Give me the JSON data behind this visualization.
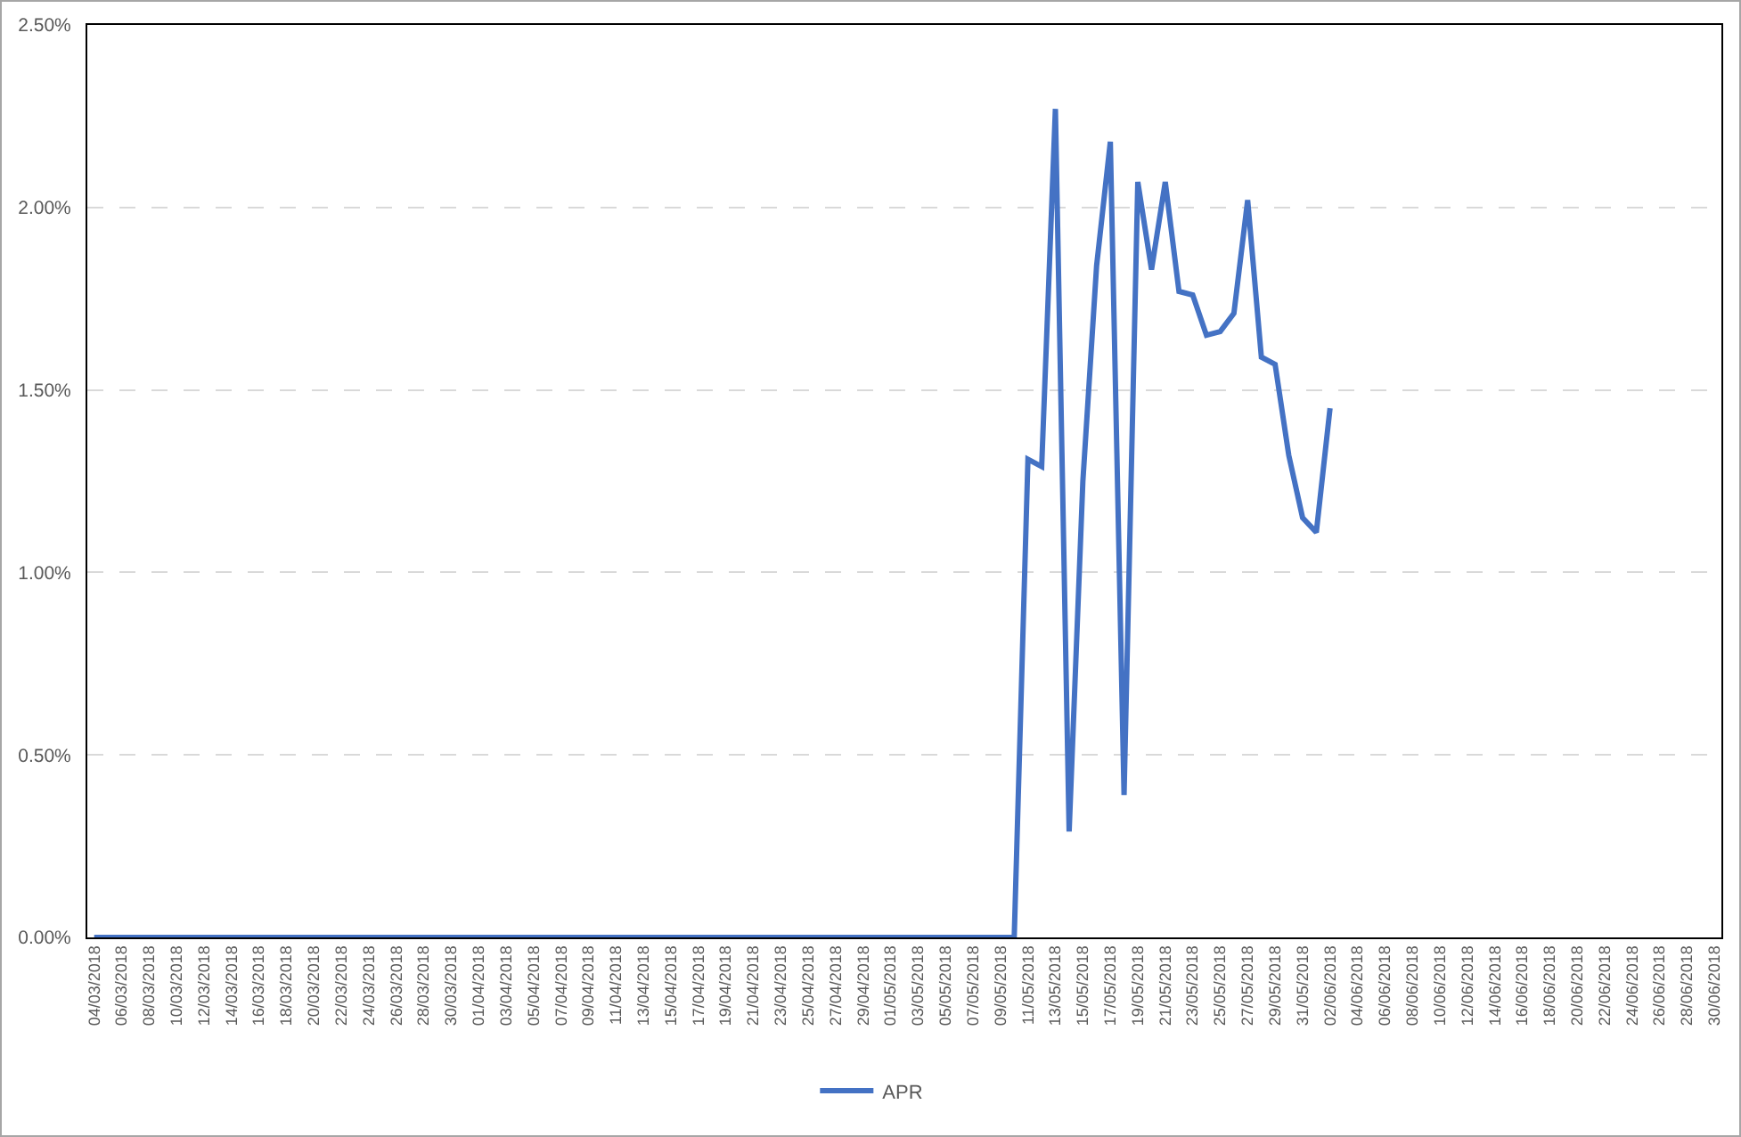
{
  "chart_data": {
    "type": "line",
    "x": [
      "2018-03-04",
      "2018-03-05",
      "2018-03-06",
      "2018-03-07",
      "2018-03-08",
      "2018-03-09",
      "2018-03-10",
      "2018-03-11",
      "2018-03-12",
      "2018-03-13",
      "2018-03-14",
      "2018-03-15",
      "2018-03-16",
      "2018-03-17",
      "2018-03-18",
      "2018-03-19",
      "2018-03-20",
      "2018-03-21",
      "2018-03-22",
      "2018-03-23",
      "2018-03-24",
      "2018-03-25",
      "2018-03-26",
      "2018-03-27",
      "2018-03-28",
      "2018-03-29",
      "2018-03-30",
      "2018-03-31",
      "2018-04-01",
      "2018-04-02",
      "2018-04-03",
      "2018-04-04",
      "2018-04-05",
      "2018-04-06",
      "2018-04-07",
      "2018-04-08",
      "2018-04-09",
      "2018-04-10",
      "2018-04-11",
      "2018-04-12",
      "2018-04-13",
      "2018-04-14",
      "2018-04-15",
      "2018-04-16",
      "2018-04-17",
      "2018-04-18",
      "2018-04-19",
      "2018-04-20",
      "2018-04-21",
      "2018-04-22",
      "2018-04-23",
      "2018-04-24",
      "2018-04-25",
      "2018-04-26",
      "2018-04-27",
      "2018-04-28",
      "2018-04-29",
      "2018-04-30",
      "2018-05-01",
      "2018-05-02",
      "2018-05-03",
      "2018-05-04",
      "2018-05-05",
      "2018-05-06",
      "2018-05-07",
      "2018-05-08",
      "2018-05-09",
      "2018-05-10",
      "2018-05-11",
      "2018-05-12",
      "2018-05-13",
      "2018-05-14",
      "2018-05-15",
      "2018-05-16",
      "2018-05-17",
      "2018-05-18",
      "2018-05-19",
      "2018-05-20",
      "2018-05-21",
      "2018-05-22",
      "2018-05-23",
      "2018-05-24",
      "2018-05-25",
      "2018-05-26",
      "2018-05-27",
      "2018-05-28",
      "2018-05-29",
      "2018-05-30",
      "2018-05-31",
      "2018-06-01",
      "2018-06-02"
    ],
    "series": [
      {
        "name": "APR",
        "color": "#4472c4",
        "values": [
          0,
          0,
          0,
          0,
          0,
          0,
          0,
          0,
          0,
          0,
          0,
          0,
          0,
          0,
          0,
          0,
          0,
          0,
          0,
          0,
          0,
          0,
          0,
          0,
          0,
          0,
          0,
          0,
          0,
          0,
          0,
          0,
          0,
          0,
          0,
          0,
          0,
          0,
          0,
          0,
          0,
          0,
          0,
          0,
          0,
          0,
          0,
          0,
          0,
          0,
          0,
          0,
          0,
          0,
          0,
          0,
          0,
          0,
          0,
          0,
          0,
          0,
          0,
          0,
          0,
          0,
          0,
          0,
          1.31,
          1.29,
          2.27,
          0.29,
          1.25,
          1.84,
          2.18,
          0.39,
          2.07,
          1.83,
          2.07,
          1.77,
          1.76,
          1.65,
          1.66,
          1.71,
          2.02,
          1.59,
          1.57,
          1.32,
          1.15,
          1.11,
          1.45
        ]
      }
    ],
    "xlim": [
      "2018-03-03T12:00",
      "2018-06-30T12:00"
    ],
    "xticks": [
      {
        "value": "2018-03-04",
        "label": "04/03/2018"
      },
      {
        "value": "2018-03-06",
        "label": "06/03/2018"
      },
      {
        "value": "2018-03-08",
        "label": "08/03/2018"
      },
      {
        "value": "2018-03-10",
        "label": "10/03/2018"
      },
      {
        "value": "2018-03-12",
        "label": "12/03/2018"
      },
      {
        "value": "2018-03-14",
        "label": "14/03/2018"
      },
      {
        "value": "2018-03-16",
        "label": "16/03/2018"
      },
      {
        "value": "2018-03-18",
        "label": "18/03/2018"
      },
      {
        "value": "2018-03-20",
        "label": "20/03/2018"
      },
      {
        "value": "2018-03-22",
        "label": "22/03/2018"
      },
      {
        "value": "2018-03-24",
        "label": "24/03/2018"
      },
      {
        "value": "2018-03-26",
        "label": "26/03/2018"
      },
      {
        "value": "2018-03-28",
        "label": "28/03/2018"
      },
      {
        "value": "2018-03-30",
        "label": "30/03/2018"
      },
      {
        "value": "2018-04-01",
        "label": "01/04/2018"
      },
      {
        "value": "2018-04-03",
        "label": "03/04/2018"
      },
      {
        "value": "2018-04-05",
        "label": "05/04/2018"
      },
      {
        "value": "2018-04-07",
        "label": "07/04/2018"
      },
      {
        "value": "2018-04-09",
        "label": "09/04/2018"
      },
      {
        "value": "2018-04-11",
        "label": "11/04/2018"
      },
      {
        "value": "2018-04-13",
        "label": "13/04/2018"
      },
      {
        "value": "2018-04-15",
        "label": "15/04/2018"
      },
      {
        "value": "2018-04-17",
        "label": "17/04/2018"
      },
      {
        "value": "2018-04-19",
        "label": "19/04/2018"
      },
      {
        "value": "2018-04-21",
        "label": "21/04/2018"
      },
      {
        "value": "2018-04-23",
        "label": "23/04/2018"
      },
      {
        "value": "2018-04-25",
        "label": "25/04/2018"
      },
      {
        "value": "2018-04-27",
        "label": "27/04/2018"
      },
      {
        "value": "2018-04-29",
        "label": "29/04/2018"
      },
      {
        "value": "2018-05-01",
        "label": "01/05/2018"
      },
      {
        "value": "2018-05-03",
        "label": "03/05/2018"
      },
      {
        "value": "2018-05-05",
        "label": "05/05/2018"
      },
      {
        "value": "2018-05-07",
        "label": "07/05/2018"
      },
      {
        "value": "2018-05-09",
        "label": "09/05/2018"
      },
      {
        "value": "2018-05-11",
        "label": "11/05/2018"
      },
      {
        "value": "2018-05-13",
        "label": "13/05/2018"
      },
      {
        "value": "2018-05-15",
        "label": "15/05/2018"
      },
      {
        "value": "2018-05-17",
        "label": "17/05/2018"
      },
      {
        "value": "2018-05-19",
        "label": "19/05/2018"
      },
      {
        "value": "2018-05-21",
        "label": "21/05/2018"
      },
      {
        "value": "2018-05-23",
        "label": "23/05/2018"
      },
      {
        "value": "2018-05-25",
        "label": "25/05/2018"
      },
      {
        "value": "2018-05-27",
        "label": "27/05/2018"
      },
      {
        "value": "2018-05-29",
        "label": "29/05/2018"
      },
      {
        "value": "2018-05-31",
        "label": "31/05/2018"
      },
      {
        "value": "2018-06-02",
        "label": "02/06/2018"
      },
      {
        "value": "2018-06-04",
        "label": "04/06/2018"
      },
      {
        "value": "2018-06-06",
        "label": "06/06/2018"
      },
      {
        "value": "2018-06-08",
        "label": "08/06/2018"
      },
      {
        "value": "2018-06-10",
        "label": "10/06/2018"
      },
      {
        "value": "2018-06-12",
        "label": "12/06/2018"
      },
      {
        "value": "2018-06-14",
        "label": "14/06/2018"
      },
      {
        "value": "2018-06-16",
        "label": "16/06/2018"
      },
      {
        "value": "2018-06-18",
        "label": "18/06/2018"
      },
      {
        "value": "2018-06-20",
        "label": "20/06/2018"
      },
      {
        "value": "2018-06-22",
        "label": "22/06/2018"
      },
      {
        "value": "2018-06-24",
        "label": "24/06/2018"
      },
      {
        "value": "2018-06-26",
        "label": "26/06/2018"
      },
      {
        "value": "2018-06-28",
        "label": "28/06/2018"
      },
      {
        "value": "2018-06-30",
        "label": "30/06/2018"
      }
    ],
    "ylim": [
      0,
      2.5
    ],
    "yticks": [
      {
        "value": 0,
        "label": "0.00%"
      },
      {
        "value": 0.5,
        "label": "0.50%"
      },
      {
        "value": 1,
        "label": "1.00%"
      },
      {
        "value": 1.5,
        "label": "1.50%"
      },
      {
        "value": 2,
        "label": "2.00%"
      },
      {
        "value": 2.5,
        "label": "2.50%"
      }
    ],
    "grid": "y",
    "legend": "bottom"
  }
}
